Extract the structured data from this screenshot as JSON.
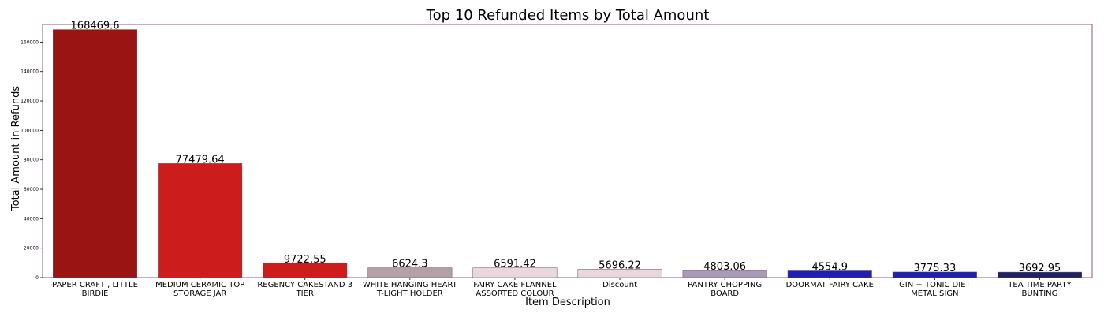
{
  "chart_data": {
    "type": "bar",
    "title": "Top 10 Refunded Items by Total Amount",
    "xlabel": "Item Description",
    "ylabel": "Total Amount in Refunds",
    "ylim": [
      0,
      172000
    ],
    "yticks": [
      0,
      20000,
      40000,
      60000,
      80000,
      100000,
      120000,
      140000,
      160000
    ],
    "grid": false,
    "categories": [
      [
        "PAPER CRAFT , LITTLE",
        "BIRDIE"
      ],
      [
        "MEDIUM CERAMIC TOP",
        "STORAGE JAR"
      ],
      [
        "REGENCY CAKESTAND 3",
        "TIER"
      ],
      [
        "WHITE HANGING HEART",
        "T-LIGHT HOLDER"
      ],
      [
        "FAIRY CAKE FLANNEL",
        "ASSORTED COLOUR"
      ],
      [
        "Discount"
      ],
      [
        "PANTRY CHOPPING",
        "BOARD"
      ],
      [
        "DOORMAT FAIRY CAKE"
      ],
      [
        "GIN + TONIC DIET",
        "METAL SIGN"
      ],
      [
        "TEA TIME PARTY",
        "BUNTING"
      ]
    ],
    "values": [
      168469.6,
      77479.64,
      9722.55,
      6624.3,
      6591.42,
      5696.22,
      4803.06,
      4554.9,
      3775.33,
      3692.95
    ],
    "data_labels": [
      "168469.6",
      "77479.64",
      "9722.55",
      "6624.3",
      "6591.42",
      "5696.22",
      "4803.06",
      "4554.9",
      "3775.33",
      "3692.95"
    ],
    "colors": [
      "#9a1414",
      "#cc1c1c",
      "#cc1c1c",
      "#b3a1a8",
      "#e8d8dd",
      "#e8d8dd",
      "#a99ab8",
      "#2020b0",
      "#2020b0",
      "#1c2264"
    ],
    "frame_color": "#8a5a8a"
  }
}
